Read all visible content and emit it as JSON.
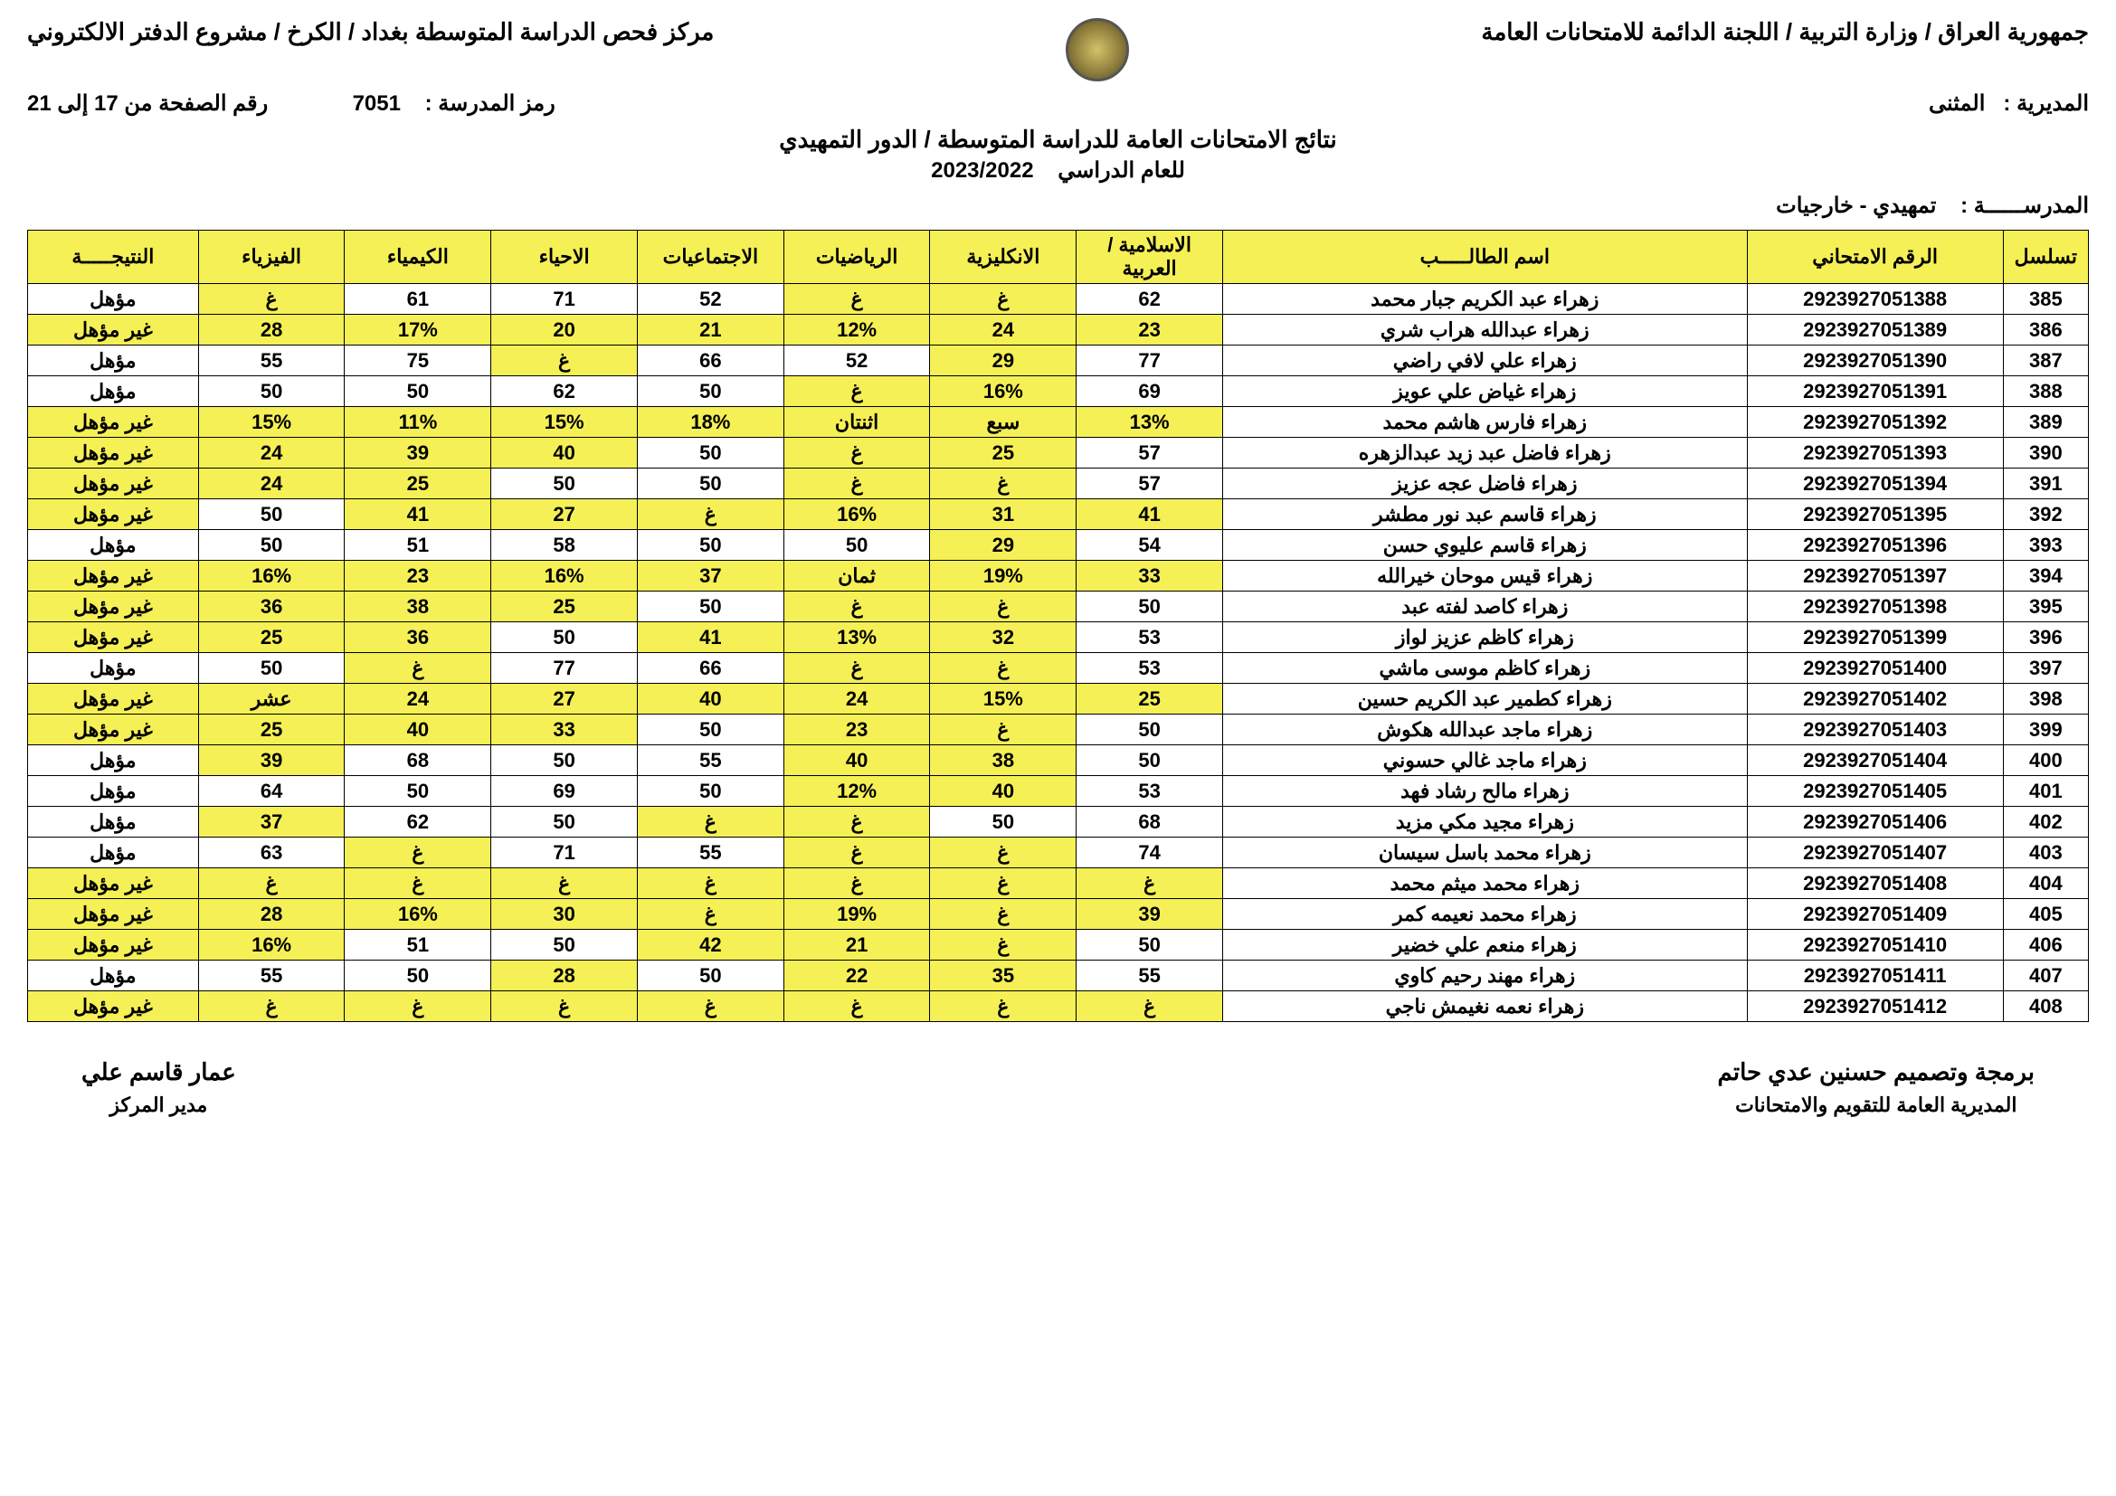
{
  "header": {
    "right": "جمهورية العراق / وزارة التربية / اللجنة الدائمة للامتحانات العامة",
    "left": "مركز فحص الدراسة المتوسطة بغداد / الكرخ / مشروع الدفتر الالكتروني",
    "school_code_label": "رمز المدرسة :",
    "school_code": "7051",
    "page_label": "رقم الصفحة من 17 إلى 21",
    "center_title": "نتائج الامتحانات العامة للدراسة المتوسطة / الدور التمهيدي",
    "year_label": "للعام الدراسي",
    "year": "2023/2022",
    "directorate_label": "المديرية :",
    "directorate": "المثنى",
    "school_label": "المدرســــــة :",
    "school": "تمهيدي - خارجيات"
  },
  "columns": [
    "تسلسل",
    "الرقم الامتحاني",
    "اسم الطالـــــب",
    "الاسلامية / العربية",
    "الانكليزية",
    "الرياضيات",
    "الاجتماعيات",
    "الاحياء",
    "الكيمياء",
    "الفيزياء",
    "النتيجـــــة"
  ],
  "rows": [
    {
      "seq": "385",
      "exam": "2923927051388",
      "name": "زهراء عبد الكريم جبار محمد",
      "c": [
        [
          "62",
          0
        ],
        [
          "غ",
          1
        ],
        [
          "غ",
          1
        ],
        [
          "52",
          0
        ],
        [
          "71",
          0
        ],
        [
          "61",
          0
        ],
        [
          "غ",
          1
        ]
      ],
      "res": [
        "مؤهل",
        0
      ]
    },
    {
      "seq": "386",
      "exam": "2923927051389",
      "name": "زهراء عبدالله هراب شري",
      "c": [
        [
          "23",
          1
        ],
        [
          "24",
          1
        ],
        [
          "12%",
          1
        ],
        [
          "21",
          1
        ],
        [
          "20",
          1
        ],
        [
          "17%",
          1
        ],
        [
          "28",
          1
        ]
      ],
      "res": [
        "غير مؤهل",
        1
      ]
    },
    {
      "seq": "387",
      "exam": "2923927051390",
      "name": "زهراء علي لافي راضي",
      "c": [
        [
          "77",
          0
        ],
        [
          "29",
          1
        ],
        [
          "52",
          0
        ],
        [
          "66",
          0
        ],
        [
          "غ",
          1
        ],
        [
          "75",
          0
        ],
        [
          "55",
          0
        ]
      ],
      "res": [
        "مؤهل",
        0
      ]
    },
    {
      "seq": "388",
      "exam": "2923927051391",
      "name": "زهراء غياض علي عويز",
      "c": [
        [
          "69",
          0
        ],
        [
          "16%",
          1
        ],
        [
          "غ",
          1
        ],
        [
          "50",
          0
        ],
        [
          "62",
          0
        ],
        [
          "50",
          0
        ],
        [
          "50",
          0
        ]
      ],
      "res": [
        "مؤهل",
        0
      ]
    },
    {
      "seq": "389",
      "exam": "2923927051392",
      "name": "زهراء فارس هاشم محمد",
      "c": [
        [
          "13%",
          1
        ],
        [
          "سبع",
          1
        ],
        [
          "اثنتان",
          1
        ],
        [
          "18%",
          1
        ],
        [
          "15%",
          1
        ],
        [
          "11%",
          1
        ],
        [
          "15%",
          1
        ]
      ],
      "res": [
        "غير مؤهل",
        1
      ]
    },
    {
      "seq": "390",
      "exam": "2923927051393",
      "name": "زهراء فاضل عبد زيد عبدالزهره",
      "c": [
        [
          "57",
          0
        ],
        [
          "25",
          1
        ],
        [
          "غ",
          1
        ],
        [
          "50",
          0
        ],
        [
          "40",
          1
        ],
        [
          "39",
          1
        ],
        [
          "24",
          1
        ]
      ],
      "res": [
        "غير مؤهل",
        1
      ]
    },
    {
      "seq": "391",
      "exam": "2923927051394",
      "name": "زهراء فاضل عجه عزيز",
      "c": [
        [
          "57",
          0
        ],
        [
          "غ",
          1
        ],
        [
          "غ",
          1
        ],
        [
          "50",
          0
        ],
        [
          "50",
          0
        ],
        [
          "25",
          1
        ],
        [
          "24",
          1
        ]
      ],
      "res": [
        "غير مؤهل",
        1
      ]
    },
    {
      "seq": "392",
      "exam": "2923927051395",
      "name": "زهراء قاسم عبد نور مطشر",
      "c": [
        [
          "41",
          1
        ],
        [
          "31",
          1
        ],
        [
          "16%",
          1
        ],
        [
          "غ",
          1
        ],
        [
          "27",
          1
        ],
        [
          "41",
          1
        ],
        [
          "50",
          0
        ]
      ],
      "res": [
        "غير مؤهل",
        1
      ]
    },
    {
      "seq": "393",
      "exam": "2923927051396",
      "name": "زهراء قاسم عليوي حسن",
      "c": [
        [
          "54",
          0
        ],
        [
          "29",
          1
        ],
        [
          "50",
          0
        ],
        [
          "50",
          0
        ],
        [
          "58",
          0
        ],
        [
          "51",
          0
        ],
        [
          "50",
          0
        ]
      ],
      "res": [
        "مؤهل",
        0
      ]
    },
    {
      "seq": "394",
      "exam": "2923927051397",
      "name": "زهراء قيس موحان خيرالله",
      "c": [
        [
          "33",
          1
        ],
        [
          "19%",
          1
        ],
        [
          "ثمان",
          1
        ],
        [
          "37",
          1
        ],
        [
          "16%",
          1
        ],
        [
          "23",
          1
        ],
        [
          "16%",
          1
        ]
      ],
      "res": [
        "غير مؤهل",
        1
      ]
    },
    {
      "seq": "395",
      "exam": "2923927051398",
      "name": "زهراء كاصد لفته عبد",
      "c": [
        [
          "50",
          0
        ],
        [
          "غ",
          1
        ],
        [
          "غ",
          1
        ],
        [
          "50",
          0
        ],
        [
          "25",
          1
        ],
        [
          "38",
          1
        ],
        [
          "36",
          1
        ]
      ],
      "res": [
        "غير مؤهل",
        1
      ]
    },
    {
      "seq": "396",
      "exam": "2923927051399",
      "name": "زهراء كاظم عزيز لواز",
      "c": [
        [
          "53",
          0
        ],
        [
          "32",
          1
        ],
        [
          "13%",
          1
        ],
        [
          "41",
          1
        ],
        [
          "50",
          0
        ],
        [
          "36",
          1
        ],
        [
          "25",
          1
        ]
      ],
      "res": [
        "غير مؤهل",
        1
      ]
    },
    {
      "seq": "397",
      "exam": "2923927051400",
      "name": "زهراء كاظم موسى ماشي",
      "c": [
        [
          "53",
          0
        ],
        [
          "غ",
          1
        ],
        [
          "غ",
          1
        ],
        [
          "66",
          0
        ],
        [
          "77",
          0
        ],
        [
          "غ",
          1
        ],
        [
          "50",
          0
        ]
      ],
      "res": [
        "مؤهل",
        0
      ]
    },
    {
      "seq": "398",
      "exam": "2923927051402",
      "name": "زهراء كطمير عبد الكريم حسين",
      "c": [
        [
          "25",
          1
        ],
        [
          "15%",
          1
        ],
        [
          "24",
          1
        ],
        [
          "40",
          1
        ],
        [
          "27",
          1
        ],
        [
          "24",
          1
        ],
        [
          "عشر",
          1
        ]
      ],
      "res": [
        "غير مؤهل",
        1
      ]
    },
    {
      "seq": "399",
      "exam": "2923927051403",
      "name": "زهراء ماجد عبدالله هكوش",
      "c": [
        [
          "50",
          0
        ],
        [
          "غ",
          1
        ],
        [
          "23",
          1
        ],
        [
          "50",
          0
        ],
        [
          "33",
          1
        ],
        [
          "40",
          1
        ],
        [
          "25",
          1
        ]
      ],
      "res": [
        "غير مؤهل",
        1
      ]
    },
    {
      "seq": "400",
      "exam": "2923927051404",
      "name": "زهراء ماجد غالي حسوني",
      "c": [
        [
          "50",
          0
        ],
        [
          "38",
          1
        ],
        [
          "40",
          1
        ],
        [
          "55",
          0
        ],
        [
          "50",
          0
        ],
        [
          "68",
          0
        ],
        [
          "39",
          1
        ]
      ],
      "res": [
        "مؤهل",
        0
      ]
    },
    {
      "seq": "401",
      "exam": "2923927051405",
      "name": "زهراء مالح رشاد فهد",
      "c": [
        [
          "53",
          0
        ],
        [
          "40",
          1
        ],
        [
          "12%",
          1
        ],
        [
          "50",
          0
        ],
        [
          "69",
          0
        ],
        [
          "50",
          0
        ],
        [
          "64",
          0
        ]
      ],
      "res": [
        "مؤهل",
        0
      ]
    },
    {
      "seq": "402",
      "exam": "2923927051406",
      "name": "زهراء مجيد مكي مزيد",
      "c": [
        [
          "68",
          0
        ],
        [
          "50",
          0
        ],
        [
          "غ",
          1
        ],
        [
          "غ",
          1
        ],
        [
          "50",
          0
        ],
        [
          "62",
          0
        ],
        [
          "37",
          1
        ]
      ],
      "res": [
        "مؤهل",
        0
      ]
    },
    {
      "seq": "403",
      "exam": "2923927051407",
      "name": "زهراء محمد باسل سيسان",
      "c": [
        [
          "74",
          0
        ],
        [
          "غ",
          1
        ],
        [
          "غ",
          1
        ],
        [
          "55",
          0
        ],
        [
          "71",
          0
        ],
        [
          "غ",
          1
        ],
        [
          "63",
          0
        ]
      ],
      "res": [
        "مؤهل",
        0
      ]
    },
    {
      "seq": "404",
      "exam": "2923927051408",
      "name": "زهراء محمد ميثم محمد",
      "c": [
        [
          "غ",
          1
        ],
        [
          "غ",
          1
        ],
        [
          "غ",
          1
        ],
        [
          "غ",
          1
        ],
        [
          "غ",
          1
        ],
        [
          "غ",
          1
        ],
        [
          "غ",
          1
        ]
      ],
      "res": [
        "غير مؤهل",
        1
      ]
    },
    {
      "seq": "405",
      "exam": "2923927051409",
      "name": "زهراء محمد نعيمه كمر",
      "c": [
        [
          "39",
          1
        ],
        [
          "غ",
          1
        ],
        [
          "19%",
          1
        ],
        [
          "غ",
          1
        ],
        [
          "30",
          1
        ],
        [
          "16%",
          1
        ],
        [
          "28",
          1
        ]
      ],
      "res": [
        "غير مؤهل",
        1
      ]
    },
    {
      "seq": "406",
      "exam": "2923927051410",
      "name": "زهراء منعم علي خضير",
      "c": [
        [
          "50",
          0
        ],
        [
          "غ",
          1
        ],
        [
          "21",
          1
        ],
        [
          "42",
          1
        ],
        [
          "50",
          0
        ],
        [
          "51",
          0
        ],
        [
          "16%",
          1
        ]
      ],
      "res": [
        "غير مؤهل",
        1
      ]
    },
    {
      "seq": "407",
      "exam": "2923927051411",
      "name": "زهراء مهند رحيم كاوي",
      "c": [
        [
          "55",
          0
        ],
        [
          "35",
          1
        ],
        [
          "22",
          1
        ],
        [
          "50",
          0
        ],
        [
          "28",
          1
        ],
        [
          "50",
          0
        ],
        [
          "55",
          0
        ]
      ],
      "res": [
        "مؤهل",
        0
      ]
    },
    {
      "seq": "408",
      "exam": "2923927051412",
      "name": "زهراء نعمه نغيمش ناجي",
      "c": [
        [
          "غ",
          1
        ],
        [
          "غ",
          1
        ],
        [
          "غ",
          1
        ],
        [
          "غ",
          1
        ],
        [
          "غ",
          1
        ],
        [
          "غ",
          1
        ],
        [
          "غ",
          1
        ]
      ],
      "res": [
        "غير مؤهل",
        1
      ]
    }
  ],
  "footer": {
    "right_name": "برمجة وتصميم حسنين عدي حاتم",
    "right_title": "المديرية العامة للتقويم والامتحانات",
    "left_name": "عمار قاسم علي",
    "left_title": "مدير المركز"
  }
}
